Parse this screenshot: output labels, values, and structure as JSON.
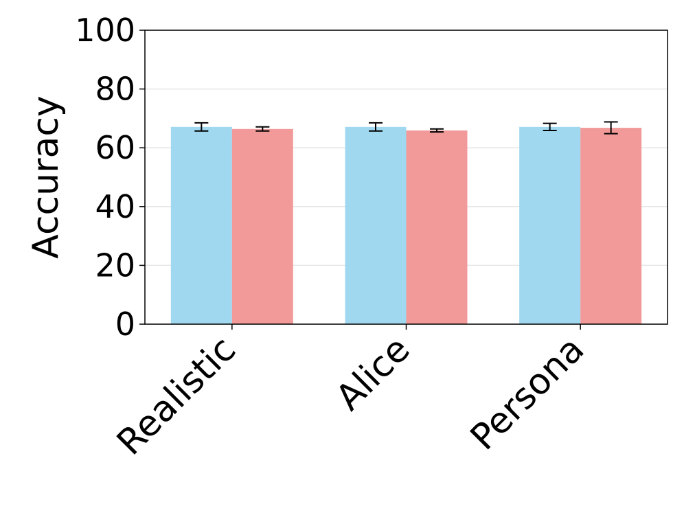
{
  "chart_data": {
    "type": "bar",
    "y_label": "Accuracy",
    "categories": [
      "Realistic",
      "Alice",
      "Persona"
    ],
    "series": [
      {
        "color": "#a0d8ef",
        "values": [
          67.1,
          67.1,
          67.1
        ],
        "errors": [
          1.4,
          1.4,
          1.2
        ]
      },
      {
        "color": "#f29a9a",
        "values": [
          66.4,
          65.9,
          66.8
        ],
        "errors": [
          0.7,
          0.5,
          2.0
        ]
      }
    ],
    "ylim": [
      0,
      100
    ],
    "yticks": [
      0,
      20,
      40,
      60,
      80,
      100
    ],
    "grid": true
  }
}
